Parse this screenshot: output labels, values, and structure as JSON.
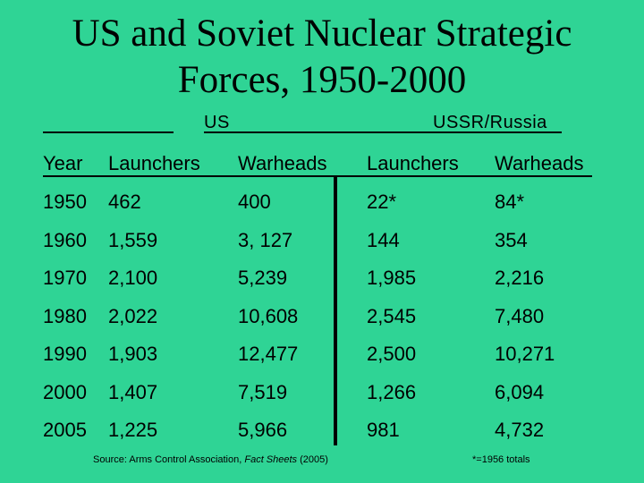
{
  "title": {
    "line1": "US and Soviet Nuclear Strategic",
    "line2": "Forces, 1950-2000"
  },
  "groups": {
    "us": "US",
    "ussr": "USSR/Russia"
  },
  "table": {
    "headers": [
      "Year",
      "Launchers",
      "Warheads",
      "Launchers",
      "Warheads"
    ],
    "rows": [
      [
        "1950",
        "462",
        "400",
        "22*",
        "84*"
      ],
      [
        "1960",
        "1,559",
        "3, 127",
        "144",
        "354"
      ],
      [
        "1970",
        "2,100",
        "5,239",
        "1,985",
        "2,216"
      ],
      [
        "1980",
        "2,022",
        "10,608",
        "2,545",
        "7,480"
      ],
      [
        "1990",
        "1,903",
        "12,477",
        "2,500",
        "10,271"
      ],
      [
        "2000",
        "1,407",
        "7,519",
        "1,266",
        "6,094"
      ],
      [
        "2005",
        "1,225",
        "5,966",
        "981",
        "4,732"
      ]
    ]
  },
  "source": {
    "prefix": "Source: Arms Control Association, ",
    "title": "Fact Sheets",
    "suffix": " (2005)"
  },
  "note": "*=1956 totals"
}
